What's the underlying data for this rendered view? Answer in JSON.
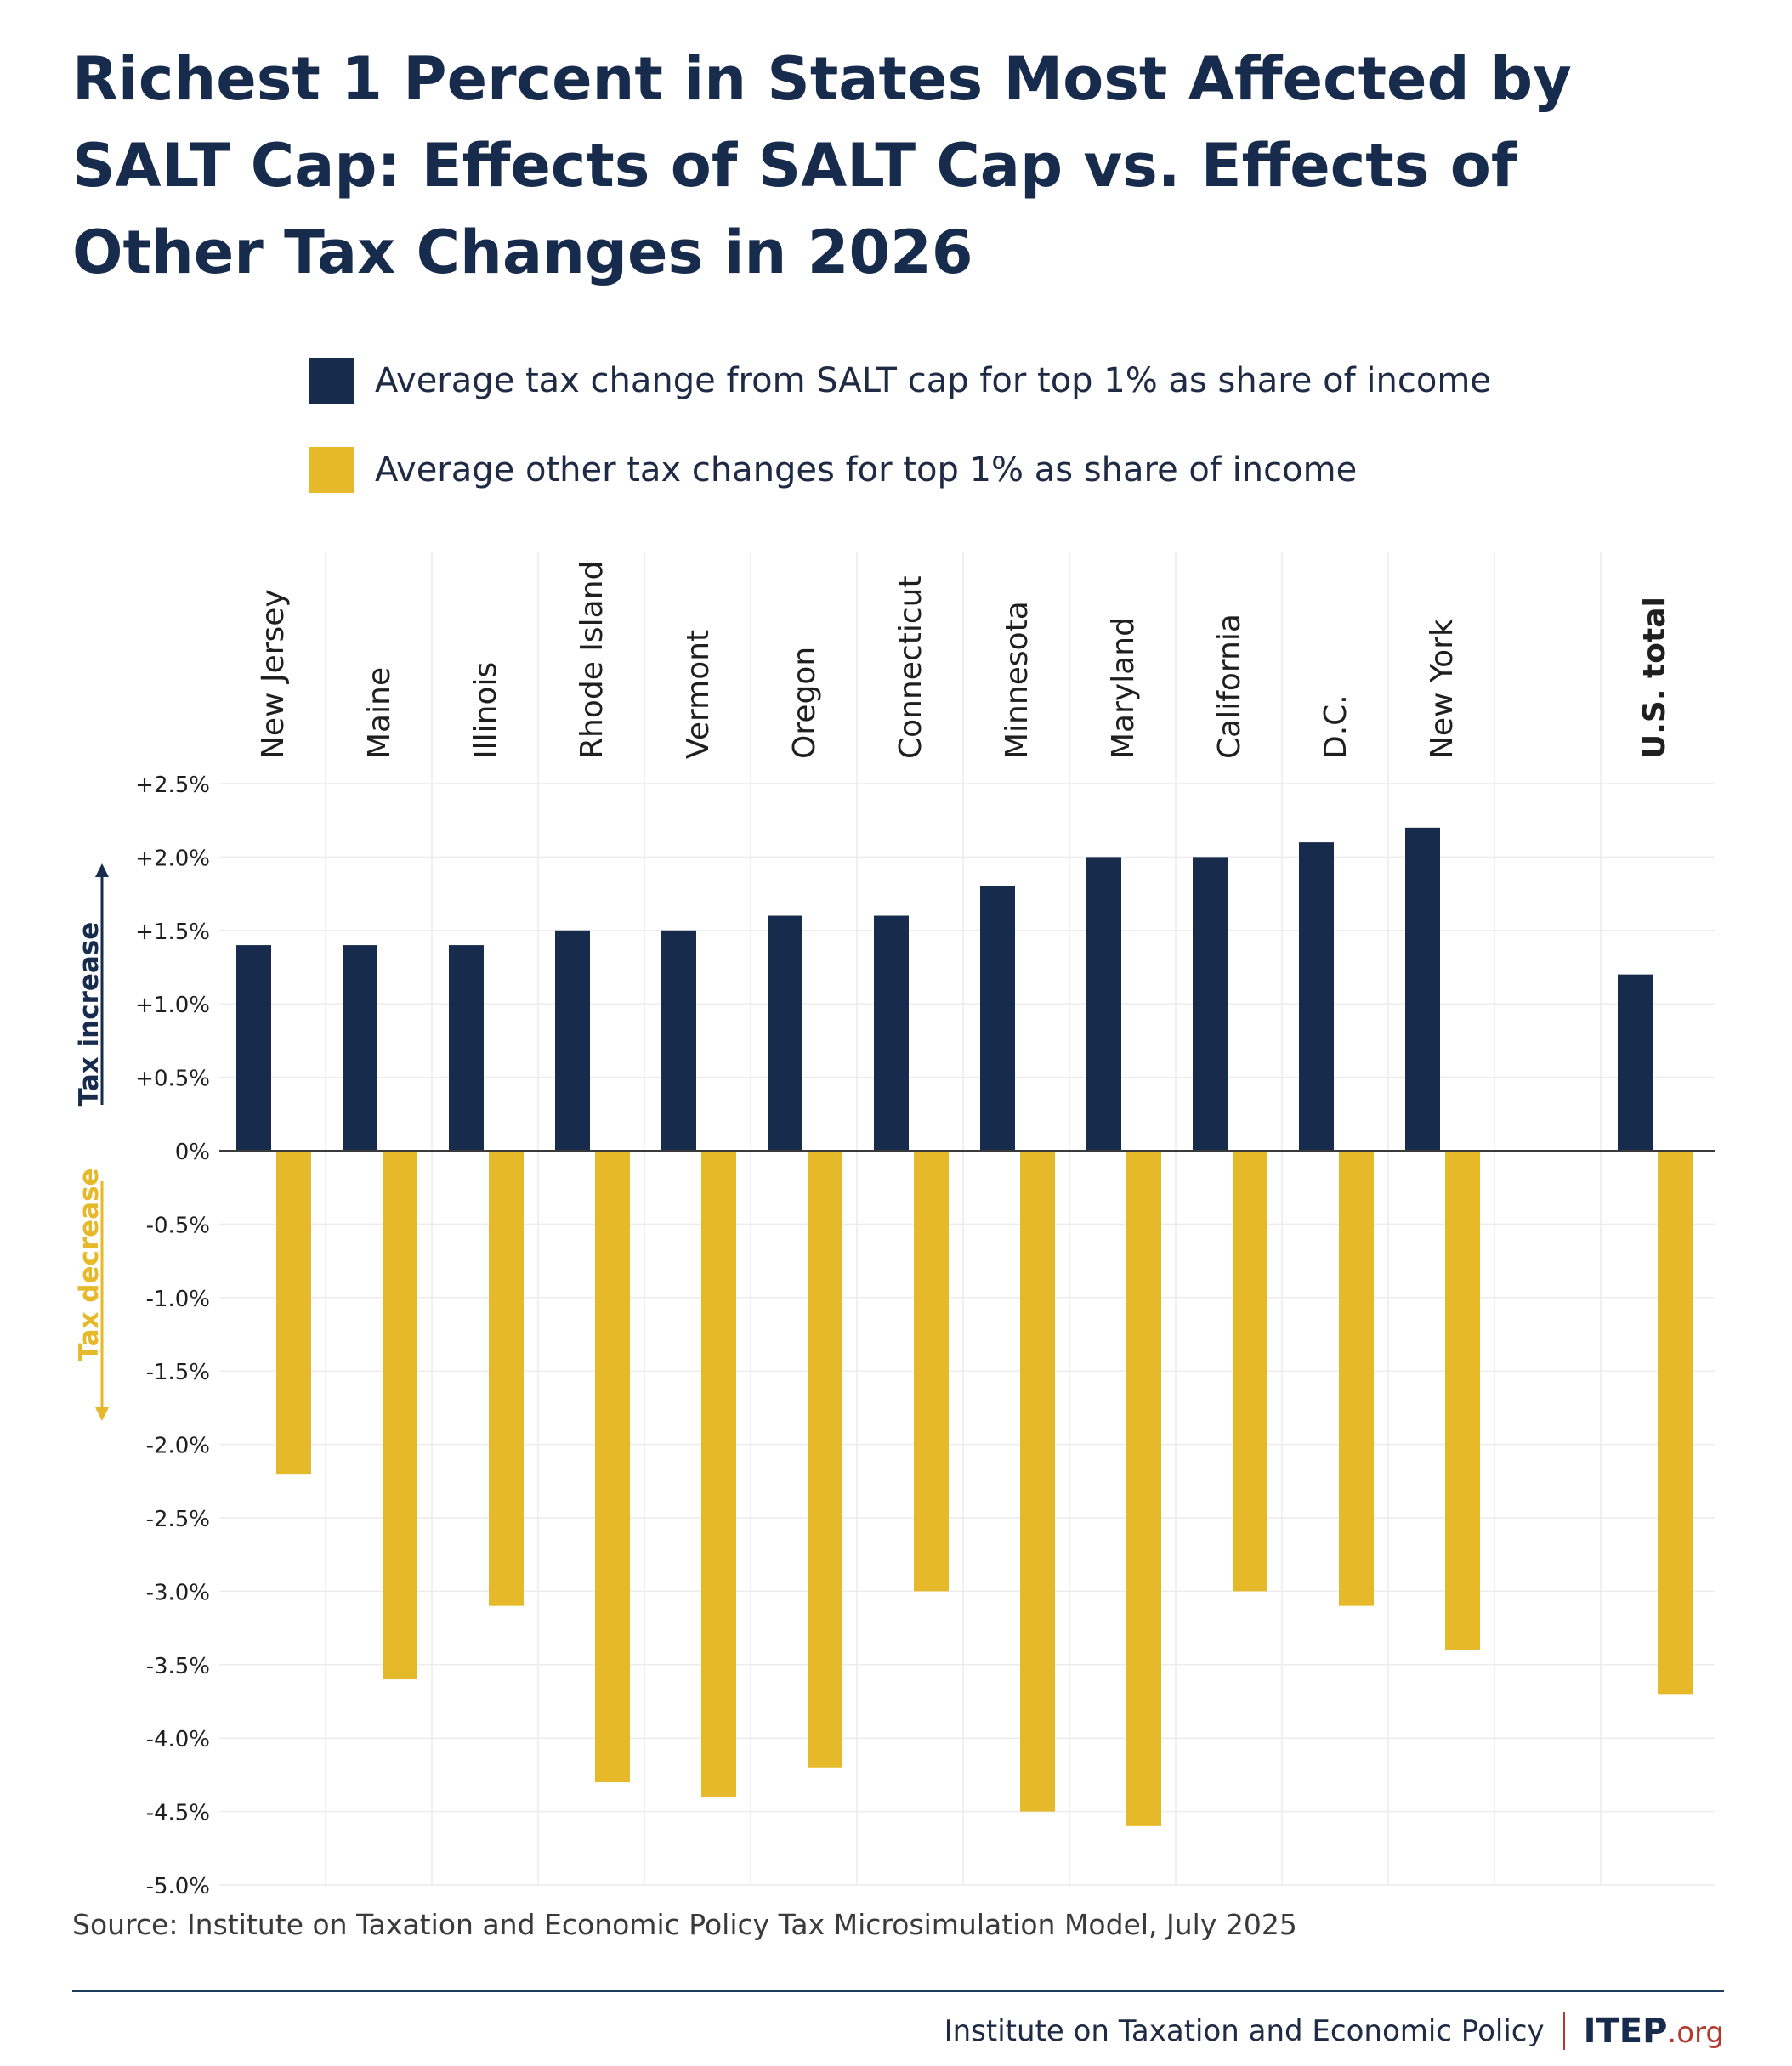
{
  "title": "Richest 1 Percent in States Most Affected by SALT Cap: Effects of SALT Cap vs. Effects of Other Tax Changes in 2026",
  "legend": [
    {
      "label": "Average tax change from SALT cap for top 1% as share of income",
      "color": "#172b4d"
    },
    {
      "label": "Average other tax changes for top 1% as share of income",
      "color": "#e6b92a"
    }
  ],
  "axis_side_labels": {
    "increase": "Tax increase",
    "decrease": "Tax decrease"
  },
  "source": "Source: Institute on Taxation and Economic Policy Tax Microsimulation Model, July 2025",
  "footer": {
    "org": "Institute on Taxation and Economic Policy",
    "logo": "ITEP",
    "logo_suffix": ".org"
  },
  "chart_data": {
    "type": "bar",
    "categories": [
      "New Jersey",
      "Maine",
      "Illinois",
      "Rhode Island",
      "Vermont",
      "Oregon",
      "Connecticut",
      "Minnesota",
      "Maryland",
      "California",
      "D.C.",
      "New York",
      "",
      "U.S. total"
    ],
    "bold_categories": [
      "U.S. total"
    ],
    "series": [
      {
        "name": "Average tax change from SALT cap for top 1% as share of income",
        "color": "#172b4d",
        "values": [
          1.4,
          1.4,
          1.4,
          1.5,
          1.5,
          1.6,
          1.6,
          1.8,
          2.0,
          2.0,
          2.1,
          2.2,
          null,
          1.2
        ]
      },
      {
        "name": "Average other tax changes for top 1% as share of income",
        "color": "#e6b92a",
        "values": [
          -2.2,
          -3.6,
          -3.1,
          -4.3,
          -4.4,
          -4.2,
          -3.0,
          -4.5,
          -4.6,
          -3.0,
          -3.1,
          -3.4,
          null,
          -3.7
        ]
      }
    ],
    "ylim": [
      -5.0,
      2.5
    ],
    "yticks": [
      2.5,
      2.0,
      1.5,
      1.0,
      0.5,
      0,
      -0.5,
      -1.0,
      -1.5,
      -2.0,
      -2.5,
      -3.0,
      -3.5,
      -4.0,
      -4.5,
      -5.0
    ],
    "ytick_labels": [
      "+2.5%",
      "+2.0%",
      "+1.5%",
      "+1.0%",
      "+0.5%",
      "0%",
      "-0.5%",
      "-1.0%",
      "-1.5%",
      "-2.0%",
      "-2.5%",
      "-3.0%",
      "-3.5%",
      "-4.0%",
      "-4.5%",
      "-5.0%"
    ],
    "grid": true,
    "legend_position": "top"
  }
}
